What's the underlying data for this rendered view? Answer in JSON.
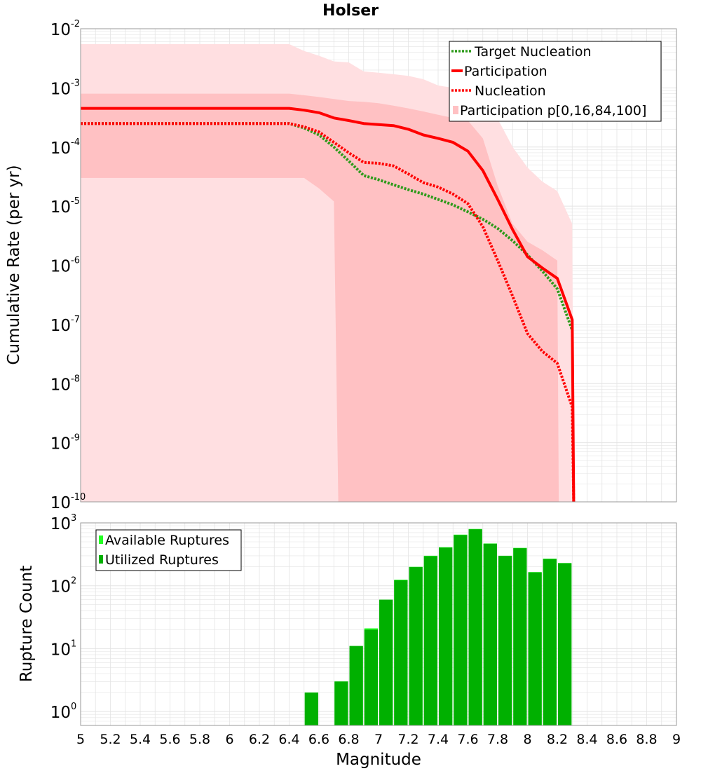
{
  "title": "Holser",
  "colors": {
    "band_outer": "#ffdfe1",
    "band_inner": "#ffc1c3",
    "participation": "#ff0000",
    "nucleation": "#ff0000",
    "target": "#2d9a1a",
    "available": "#22ff22",
    "utilized": "#00b000",
    "grid": "#e4e4e4",
    "axis": "#999999"
  },
  "chart_data": [
    {
      "type": "line",
      "title": "Holser",
      "xlabel": "",
      "ylabel": "Cumulative Rate (per yr)",
      "xlim": [
        5,
        9
      ],
      "ylim": [
        1e-10,
        0.01
      ],
      "yscale": "log",
      "grid": true,
      "legend_position": "top-right",
      "yticks": [
        {
          "base": "10",
          "exp": "-10",
          "value": 1e-10
        },
        {
          "base": "10",
          "exp": "-9",
          "value": 1e-09
        },
        {
          "base": "10",
          "exp": "-8",
          "value": 1e-08
        },
        {
          "base": "10",
          "exp": "-7",
          "value": 1e-07
        },
        {
          "base": "10",
          "exp": "-6",
          "value": 1e-06
        },
        {
          "base": "10",
          "exp": "-5",
          "value": 1e-05
        },
        {
          "base": "10",
          "exp": "-4",
          "value": 0.0001
        },
        {
          "base": "10",
          "exp": "-3",
          "value": 0.001
        },
        {
          "base": "10",
          "exp": "-2",
          "value": 0.01
        }
      ],
      "legend": [
        "Target Nucleation",
        "Participation",
        "Nucleation",
        "Participation p[0,16,84,100]"
      ],
      "bands": {
        "outer": {
          "upper": [
            [
              5,
              0.0055
            ],
            [
              6.4,
              0.0055
            ],
            [
              6.5,
              0.0042
            ],
            [
              6.6,
              0.0035
            ],
            [
              6.7,
              0.0028
            ],
            [
              6.8,
              0.0027
            ],
            [
              6.9,
              0.0019
            ],
            [
              7.0,
              0.0018
            ],
            [
              7.1,
              0.0017
            ],
            [
              7.2,
              0.0016
            ],
            [
              7.3,
              0.0014
            ],
            [
              7.4,
              0.0011
            ],
            [
              7.5,
              0.001
            ],
            [
              7.6,
              0.0009
            ],
            [
              7.7,
              0.0007
            ],
            [
              7.8,
              0.0003
            ],
            [
              7.9,
              0.0001
            ],
            [
              8.0,
              4.5e-05
            ],
            [
              8.1,
              2.6e-05
            ],
            [
              8.2,
              1.8e-05
            ],
            [
              8.3,
              5e-06
            ],
            [
              8.31,
              1e-10
            ]
          ],
          "lower": [
            [
              5,
              1e-10
            ],
            [
              8.31,
              1e-10
            ]
          ]
        },
        "inner": {
          "upper": [
            [
              5,
              0.0008
            ],
            [
              6.4,
              0.0008
            ],
            [
              6.5,
              0.00075
            ],
            [
              6.6,
              0.0007
            ],
            [
              6.7,
              0.00065
            ],
            [
              6.8,
              0.0006
            ],
            [
              6.9,
              0.00058
            ],
            [
              7.0,
              0.00055
            ],
            [
              7.1,
              0.0005
            ],
            [
              7.2,
              0.00045
            ],
            [
              7.3,
              0.0004
            ],
            [
              7.4,
              0.00035
            ],
            [
              7.5,
              0.00031
            ],
            [
              7.6,
              0.00028
            ],
            [
              7.7,
              0.00014
            ],
            [
              7.8,
              2.2e-05
            ],
            [
              7.9,
              5e-06
            ],
            [
              8.0,
              2.5e-06
            ],
            [
              8.1,
              1.8e-06
            ],
            [
              8.2,
              1.2e-06
            ],
            [
              8.21,
              1e-10
            ]
          ],
          "lower": [
            [
              5,
              3e-05
            ],
            [
              6.4,
              3e-05
            ],
            [
              6.5,
              3e-05
            ],
            [
              6.6,
              2e-05
            ],
            [
              6.7,
              1.2e-05
            ],
            [
              6.73,
              1e-10
            ],
            [
              8.21,
              1e-10
            ]
          ]
        }
      },
      "series": [
        {
          "name": "Participation",
          "style": "solid",
          "points": [
            [
              5,
              0.00045
            ],
            [
              6.4,
              0.00045
            ],
            [
              6.5,
              0.00042
            ],
            [
              6.6,
              0.00038
            ],
            [
              6.7,
              0.00031
            ],
            [
              6.8,
              0.00028
            ],
            [
              6.9,
              0.00025
            ],
            [
              7.0,
              0.00024
            ],
            [
              7.1,
              0.00023
            ],
            [
              7.2,
              0.0002
            ],
            [
              7.3,
              0.00016
            ],
            [
              7.4,
              0.00014
            ],
            [
              7.5,
              0.00012
            ],
            [
              7.6,
              8.5e-05
            ],
            [
              7.7,
              4e-05
            ],
            [
              7.8,
              1.3e-05
            ],
            [
              7.9,
              4e-06
            ],
            [
              8.0,
              1.4e-06
            ],
            [
              8.1,
              9e-07
            ],
            [
              8.2,
              6e-07
            ],
            [
              8.3,
              1.2e-07
            ],
            [
              8.31,
              1e-10
            ]
          ]
        },
        {
          "name": "Nucleation",
          "style": "dotted",
          "points": [
            [
              5,
              0.00025
            ],
            [
              6.4,
              0.00025
            ],
            [
              6.5,
              0.00022
            ],
            [
              6.6,
              0.00018
            ],
            [
              6.7,
              0.00012
            ],
            [
              6.8,
              8e-05
            ],
            [
              6.9,
              5.5e-05
            ],
            [
              7.0,
              5.3e-05
            ],
            [
              7.1,
              4.8e-05
            ],
            [
              7.2,
              3.5e-05
            ],
            [
              7.3,
              2.5e-05
            ],
            [
              7.4,
              2.1e-05
            ],
            [
              7.5,
              1.6e-05
            ],
            [
              7.6,
              1.1e-05
            ],
            [
              7.7,
              4.5e-06
            ],
            [
              7.8,
              1.2e-06
            ],
            [
              7.9,
              3e-07
            ],
            [
              8.0,
              7e-08
            ],
            [
              8.1,
              3.5e-08
            ],
            [
              8.2,
              2.2e-08
            ],
            [
              8.3,
              4e-09
            ],
            [
              8.31,
              1e-10
            ]
          ]
        },
        {
          "name": "Target Nucleation",
          "style": "dotted",
          "points": [
            [
              5,
              0.00025
            ],
            [
              6.4,
              0.00025
            ],
            [
              6.5,
              0.00021
            ],
            [
              6.6,
              0.00016
            ],
            [
              6.7,
              0.0001
            ],
            [
              6.8,
              5.8e-05
            ],
            [
              6.9,
              3.3e-05
            ],
            [
              7.0,
              2.8e-05
            ],
            [
              7.1,
              2.3e-05
            ],
            [
              7.2,
              1.9e-05
            ],
            [
              7.3,
              1.6e-05
            ],
            [
              7.4,
              1.3e-05
            ],
            [
              7.5,
              1.05e-05
            ],
            [
              7.6,
              8e-06
            ],
            [
              7.7,
              6e-06
            ],
            [
              7.8,
              4.2e-06
            ],
            [
              7.9,
              2.6e-06
            ],
            [
              8.0,
              1.5e-06
            ],
            [
              8.1,
              8e-07
            ],
            [
              8.2,
              4e-07
            ],
            [
              8.3,
              8e-08
            ]
          ]
        }
      ]
    },
    {
      "type": "bar",
      "xlabel": "Magnitude",
      "ylabel": "Rupture Count",
      "xlim": [
        5,
        9
      ],
      "ylim": [
        0.6,
        1000
      ],
      "yscale": "log",
      "grid": true,
      "legend_position": "top-left",
      "legend": [
        "Available Ruptures",
        "Utilized Ruptures"
      ],
      "xticks": [
        "5",
        "5.2",
        "5.4",
        "5.6",
        "5.8",
        "6",
        "6.2",
        "6.4",
        "6.6",
        "6.8",
        "7",
        "7.2",
        "7.4",
        "7.6",
        "7.8",
        "8",
        "8.2",
        "8.4",
        "8.6",
        "8.8",
        "9"
      ],
      "yticks": [
        {
          "base": "10",
          "exp": "0",
          "value": 1
        },
        {
          "base": "10",
          "exp": "1",
          "value": 10
        },
        {
          "base": "10",
          "exp": "2",
          "value": 100
        },
        {
          "base": "10",
          "exp": "3",
          "value": 1000
        }
      ],
      "bin_width": 0.1,
      "bin_centers": [
        6.55,
        6.75,
        6.85,
        6.95,
        7.05,
        7.15,
        7.25,
        7.35,
        7.45,
        7.55,
        7.65,
        7.75,
        7.85,
        7.95,
        8.05,
        8.15,
        8.25
      ],
      "series": [
        {
          "name": "Available Ruptures",
          "values": [
            2,
            3,
            11,
            21,
            60,
            125,
            200,
            300,
            410,
            650,
            800,
            470,
            300,
            400,
            165,
            270,
            230
          ]
        },
        {
          "name": "Utilized Ruptures",
          "values": [
            2,
            3,
            11,
            20,
            60,
            122,
            198,
            295,
            405,
            640,
            790,
            465,
            298,
            395,
            163,
            266,
            228
          ]
        }
      ]
    }
  ]
}
